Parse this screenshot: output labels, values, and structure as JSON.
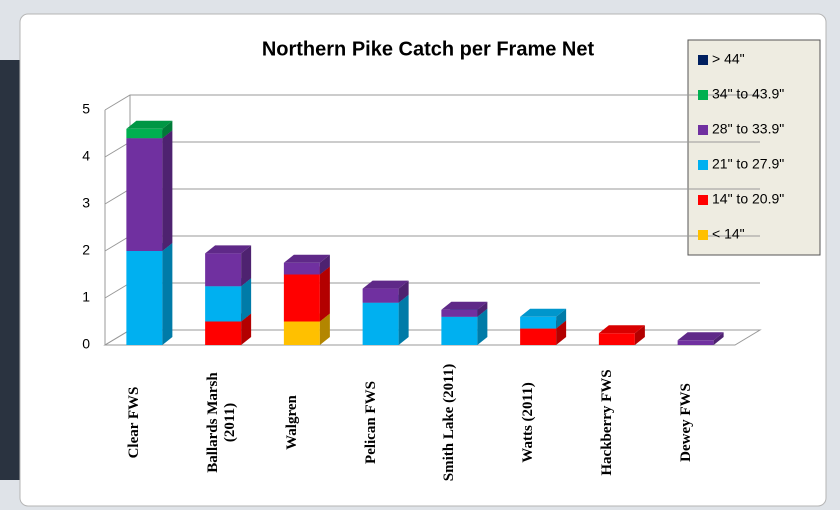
{
  "chart_data": {
    "type": "bar3d_stacked",
    "title": "Northern Pike Catch per Frame Net",
    "categories": [
      "Clear FWS",
      "Ballards Marsh (2011)",
      "Walgren",
      "Pelican FWS",
      "Smith Lake (2011)",
      "Watts (2011)",
      "Hackberry FWS",
      "Dewey FWS"
    ],
    "series": [
      {
        "name": "< 14\"",
        "color": "#ffc000",
        "values": [
          0,
          0,
          0.5,
          0,
          0,
          0,
          0,
          0
        ]
      },
      {
        "name": "14\" to 20.9\"",
        "color": "#ff0000",
        "values": [
          0,
          0.5,
          1.0,
          0,
          0,
          0.35,
          0.25,
          0
        ]
      },
      {
        "name": "21\" to 27.9\"",
        "color": "#00b0f0",
        "values": [
          2.0,
          0.75,
          0,
          0.9,
          0.6,
          0.25,
          0,
          0
        ]
      },
      {
        "name": "28\" to 33.9\"",
        "color": "#7030a0",
        "values": [
          2.4,
          0.7,
          0.25,
          0.3,
          0.15,
          0,
          0,
          0.1
        ]
      },
      {
        "name": "34\" to 43.9\"",
        "color": "#00b050",
        "values": [
          0.2,
          0,
          0,
          0,
          0,
          0,
          0,
          0
        ]
      },
      {
        "name": "> 44\"",
        "color": "#002060",
        "values": [
          0,
          0,
          0,
          0,
          0,
          0,
          0,
          0
        ]
      }
    ],
    "ylim": [
      0,
      5
    ],
    "yticks": [
      0,
      1,
      2,
      3,
      4,
      5
    ],
    "grid": true,
    "legend": "right"
  }
}
